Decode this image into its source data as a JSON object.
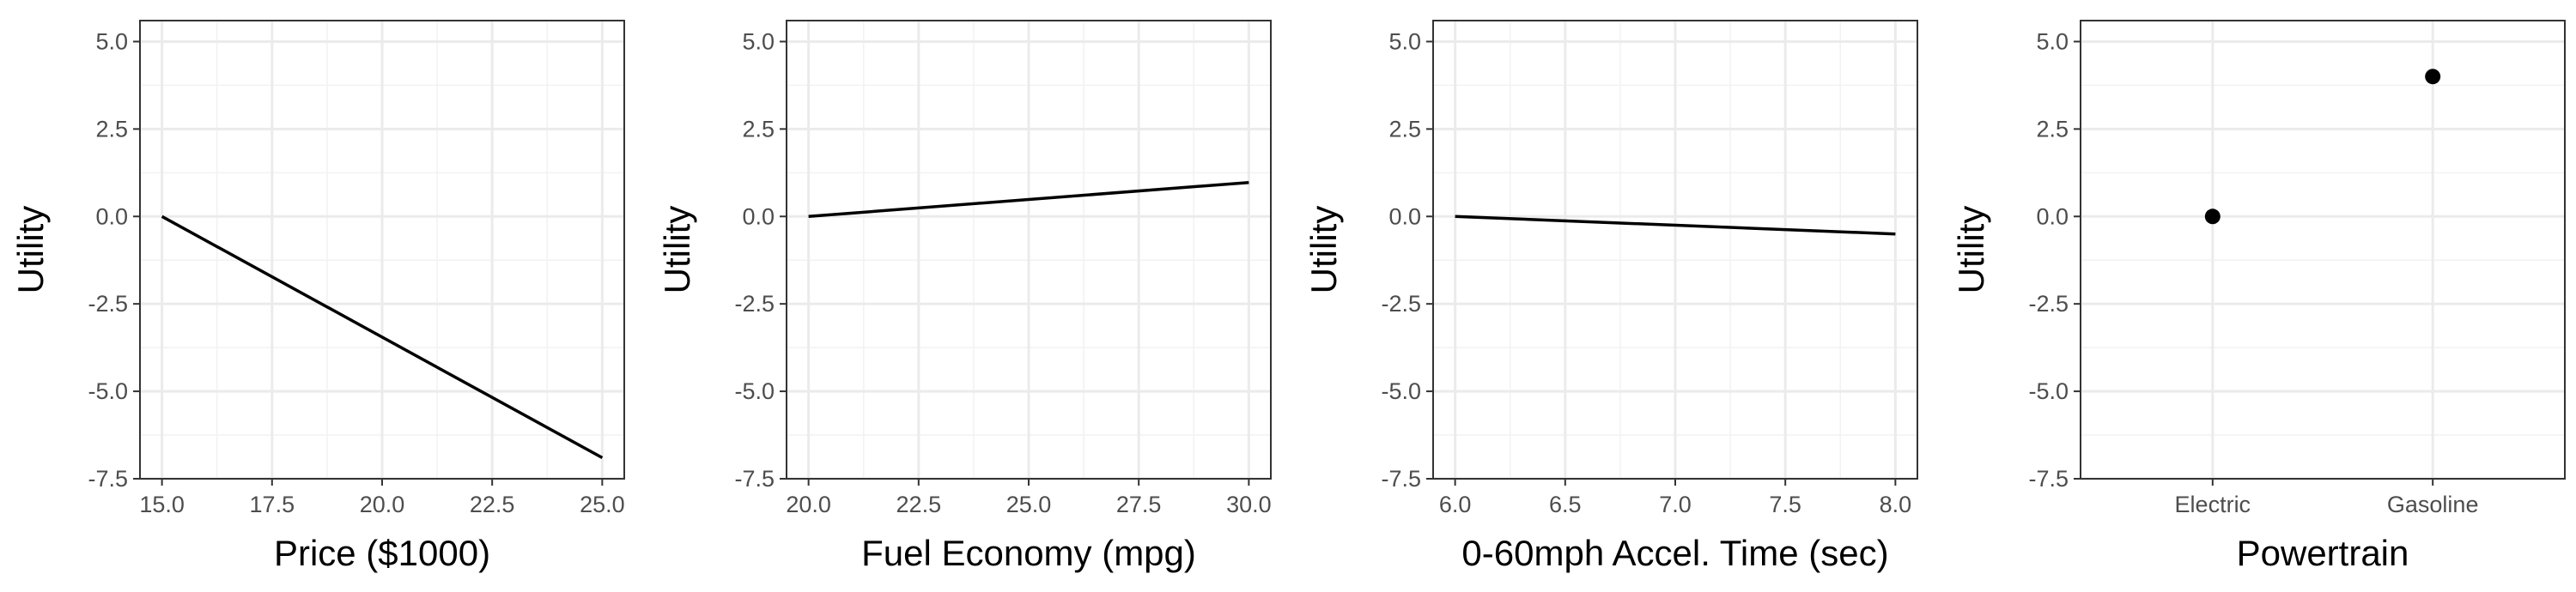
{
  "chart_data": [
    {
      "type": "line",
      "xlabel": "Price ($1000)",
      "ylabel": "Utility",
      "xlim": [
        14.5,
        25.5
      ],
      "ylim": [
        -7.5,
        5.6
      ],
      "xticks": [
        15.0,
        17.5,
        20.0,
        22.5,
        25.0
      ],
      "xtick_labels": [
        "15.0",
        "17.5",
        "20.0",
        "22.5",
        "25.0"
      ],
      "yticks": [
        -7.5,
        -5.0,
        -2.5,
        0.0,
        2.5,
        5.0
      ],
      "ytick_labels": [
        "-7.5",
        "-5.0",
        "-2.5",
        "0.0",
        "2.5",
        "5.0"
      ],
      "grid": true,
      "series": [
        {
          "x": [
            15.0,
            25.0
          ],
          "y": [
            0.0,
            -6.9
          ]
        }
      ]
    },
    {
      "type": "line",
      "xlabel": "Fuel Economy (mpg)",
      "ylabel": "Utility",
      "xlim": [
        19.5,
        30.5
      ],
      "ylim": [
        -7.5,
        5.6
      ],
      "xticks": [
        20.0,
        22.5,
        25.0,
        27.5,
        30.0
      ],
      "xtick_labels": [
        "20.0",
        "22.5",
        "25.0",
        "27.5",
        "30.0"
      ],
      "yticks": [
        -7.5,
        -5.0,
        -2.5,
        0.0,
        2.5,
        5.0
      ],
      "ytick_labels": [
        "-7.5",
        "-5.0",
        "-2.5",
        "0.0",
        "2.5",
        "5.0"
      ],
      "grid": true,
      "series": [
        {
          "x": [
            20.0,
            30.0
          ],
          "y": [
            0.0,
            0.97
          ]
        }
      ]
    },
    {
      "type": "line",
      "xlabel": "0-60mph Accel. Time (sec)",
      "ylabel": "Utility",
      "xlim": [
        5.9,
        8.1
      ],
      "ylim": [
        -7.5,
        5.6
      ],
      "xticks": [
        6.0,
        6.5,
        7.0,
        7.5,
        8.0
      ],
      "xtick_labels": [
        "6.0",
        "6.5",
        "7.0",
        "7.5",
        "8.0"
      ],
      "yticks": [
        -7.5,
        -5.0,
        -2.5,
        0.0,
        2.5,
        5.0
      ],
      "ytick_labels": [
        "-7.5",
        "-5.0",
        "-2.5",
        "0.0",
        "2.5",
        "5.0"
      ],
      "grid": true,
      "series": [
        {
          "x": [
            6.0,
            8.0
          ],
          "y": [
            0.0,
            -0.5
          ]
        }
      ]
    },
    {
      "type": "scatter",
      "xlabel": "Powertrain",
      "ylabel": "Utility",
      "categories": [
        "Electric",
        "Gasoline"
      ],
      "ylim": [
        -7.5,
        5.6
      ],
      "yticks": [
        -7.5,
        -5.0,
        -2.5,
        0.0,
        2.5,
        5.0
      ],
      "ytick_labels": [
        "-7.5",
        "-5.0",
        "-2.5",
        "0.0",
        "2.5",
        "5.0"
      ],
      "grid": true,
      "series": [
        {
          "values": [
            0.0,
            4.0
          ]
        }
      ]
    }
  ]
}
